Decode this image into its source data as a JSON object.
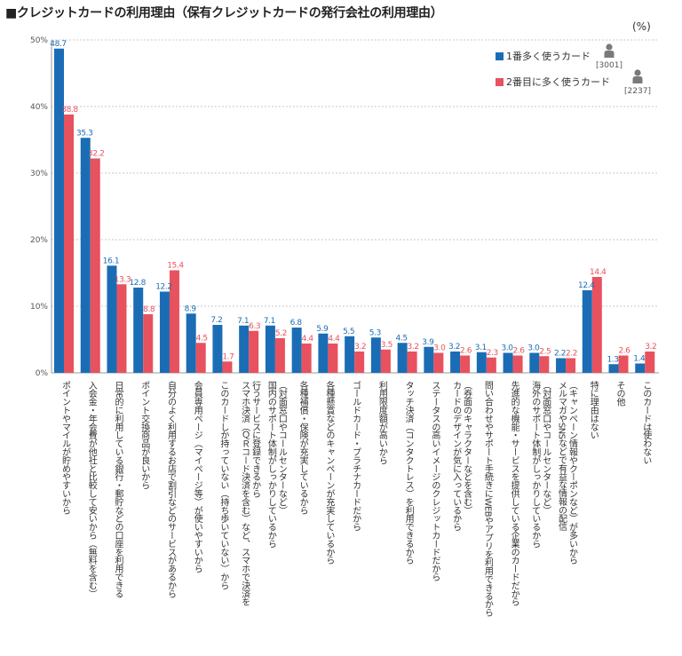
{
  "chart_data": {
    "type": "bar",
    "title": "■クレジットカードの利用理由（保有クレジットカードの発行会社の利用理由）",
    "unit": "(%)",
    "y_ticks": [
      "0%",
      "10%",
      "20%",
      "30%",
      "40%",
      "50%"
    ],
    "ylim": [
      0,
      50
    ],
    "grid": true,
    "legend_position": "top-right",
    "series": [
      {
        "name": "1番多く使うカード",
        "n": "[3001]",
        "color": "#1a6db5",
        "values": [
          48.7,
          35.3,
          16.1,
          12.8,
          12.2,
          8.9,
          7.2,
          7.1,
          7.1,
          6.8,
          5.9,
          5.5,
          5.3,
          4.5,
          3.9,
          3.2,
          3.1,
          3.0,
          3.0,
          2.2,
          12.4,
          1.3,
          1.4
        ]
      },
      {
        "name": "2番目に多く使うカード",
        "n": "[2237]",
        "color": "#e8515e",
        "values": [
          38.8,
          32.2,
          13.3,
          8.8,
          15.4,
          4.5,
          1.7,
          6.3,
          5.2,
          4.4,
          4.4,
          3.2,
          3.5,
          3.2,
          3.0,
          2.6,
          2.3,
          2.6,
          2.5,
          2.2,
          14.4,
          2.6,
          3.2
        ]
      }
    ],
    "categories": [
      [
        "ポイントやマイルが貯めやすいから"
      ],
      [
        "入会金・年会費が他社と比較して安いから（無料を含む）"
      ],
      [
        "日常的に利用している銀行・郵貯などの口座を利用できる"
      ],
      [
        "ポイント交換商品が良いから"
      ],
      [
        "自分のよく利用するお店で割引などのサービスがあるから"
      ],
      [
        "会員専用ページ（マイページ等）が使いやすいから"
      ],
      [
        "このカードしか持っていない（持ち歩いていない）から"
      ],
      [
        "スマホ決済（ＱＲコード決済を含む）など、スマホで決済を",
        "行うサービスに登録できるから"
      ],
      [
        "国内のサポート体制がしっかりしているから",
        "（対面窓口やコールセンターなど）"
      ],
      [
        "各種補償・保険が充実しているから"
      ],
      [
        "各種懸賞などのキャンペーンが充実しているから"
      ],
      [
        "ゴールドカード・プラチナカードだから"
      ],
      [
        "利用限度額が高いから"
      ],
      [
        "タッチ決済（コンタクトレス）を利用できるから"
      ],
      [
        "ステータスの高いイメージのクレジットカードだから"
      ],
      [
        "カードのデザインが気に入っているから",
        "（券面のキャラクターなどを含む）"
      ],
      [
        "問い合わせやサポート手続きにWEBやアプリを利用できるから"
      ],
      [
        "先進的な機能・サービスを提供している企業のカードだから"
      ],
      [
        "海外のサポート体制がしっかりしているから",
        "（対面窓口やコールセンターなど）"
      ],
      [
        "メルマガやSNSなどで有益な情報の配信",
        "（キャンペーン情報やクーポンなど）が多いから"
      ],
      [
        "特に理由はない"
      ],
      [
        "その他"
      ],
      [
        "このカードは使わない"
      ]
    ]
  }
}
